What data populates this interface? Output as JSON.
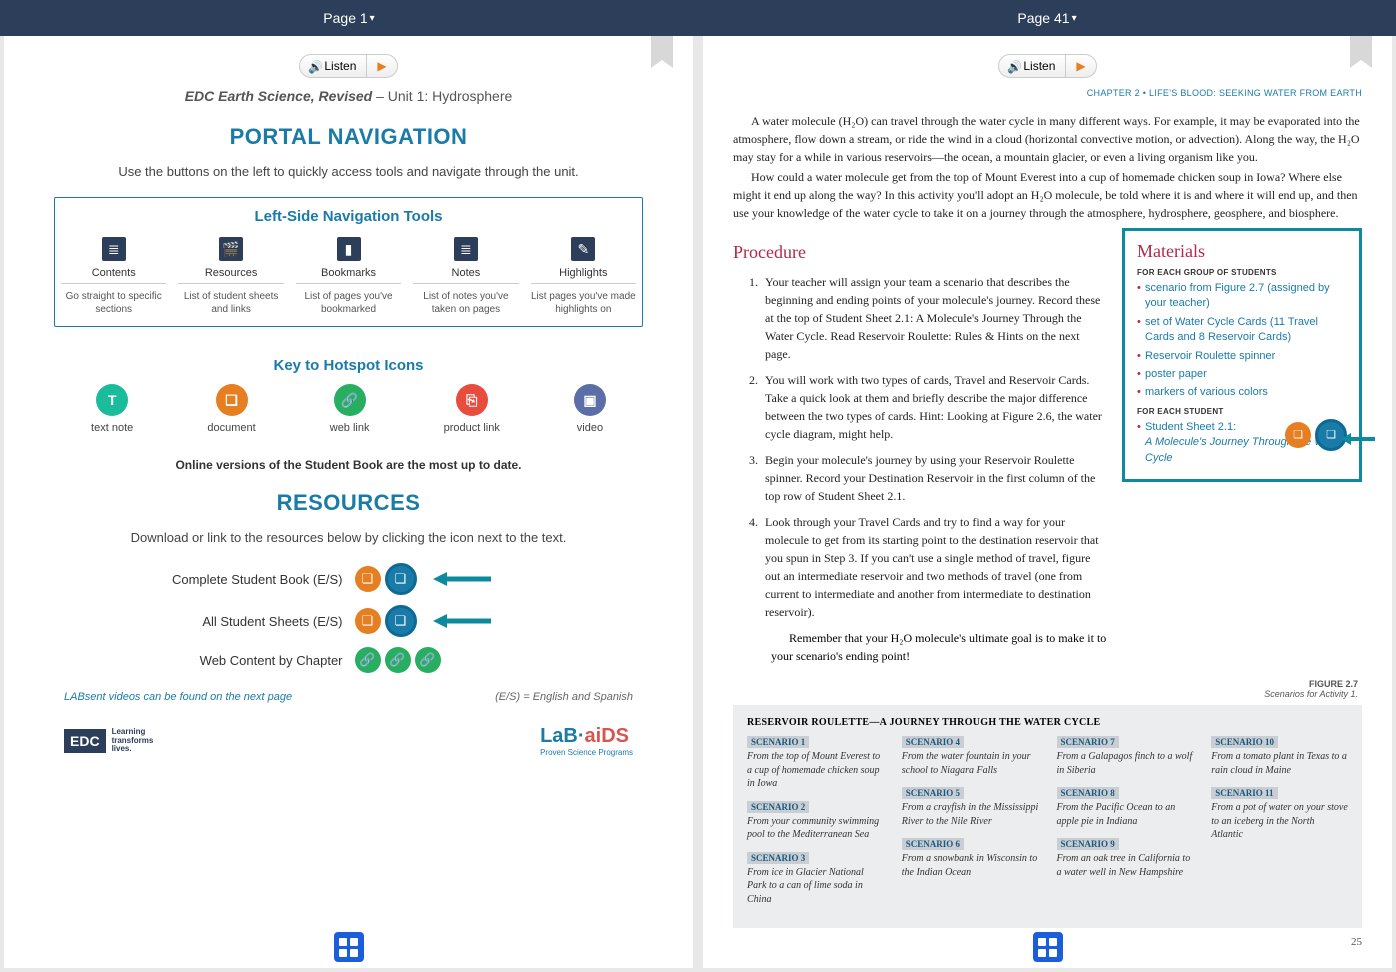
{
  "colors": {
    "topbar": "#2c3e5a",
    "accent": "#1a7ba8",
    "procTitle": "#b02a4a",
    "materialsBorder": "#0d8a9e",
    "orange": "#e67e22",
    "green": "#27ae60",
    "scenarioBg": "#ecedef"
  },
  "topbar": {
    "left": "Page 1",
    "right": "Page 41"
  },
  "listenLabel": "Listen",
  "page1": {
    "titleItalic": "EDC Earth Science, Revised",
    "titleRest": " – Unit 1: Hydrosphere",
    "portalHeading": "PORTAL NAVIGATION",
    "portalIntro": "Use the buttons on the left to quickly access tools and navigate through the unit.",
    "navBoxTitle": "Left-Side Navigation Tools",
    "navCols": [
      {
        "label": "Contents",
        "desc": "Go straight to specific sections"
      },
      {
        "label": "Resources",
        "desc": "List of student sheets and links"
      },
      {
        "label": "Bookmarks",
        "desc": "List of pages you've bookmarked"
      },
      {
        "label": "Notes",
        "desc": "List of notes you've taken on pages"
      },
      {
        "label": "Highlights",
        "desc": "List pages you've made highlights on"
      }
    ],
    "hotspotTitle": "Key to Hotspot Icons",
    "hotspots": [
      {
        "label": "text note",
        "glyph": "T",
        "color": "#1abc9c"
      },
      {
        "label": "document",
        "glyph": "❏",
        "color": "#e67e22"
      },
      {
        "label": "web link",
        "glyph": "🔗",
        "color": "#27ae60"
      },
      {
        "label": "product link",
        "glyph": "⎘",
        "color": "#e74c3c"
      },
      {
        "label": "video",
        "glyph": "▣",
        "color": "#5b6ea8"
      }
    ],
    "noteLine": "Online versions of the Student Book are the most up to date.",
    "resourcesHeading": "RESOURCES",
    "resourcesIntro": "Download or link to the resources below by clicking the icon next to the text.",
    "resRows": [
      {
        "label": "Complete Student Book (E/S)",
        "icons": [
          "orange",
          "teal"
        ],
        "arrow": true
      },
      {
        "label": "All Student Sheets (E/S)",
        "icons": [
          "orange",
          "teal"
        ],
        "arrow": true
      },
      {
        "label": "Web Content by Chapter",
        "icons": [
          "green",
          "green",
          "green"
        ],
        "arrow": false
      }
    ],
    "footLeft": "LABsent videos can be found on the next page",
    "footRight": "(E/S) = English and Spanish",
    "edc": {
      "box": "EDC",
      "tag": "Learning\ntransforms\nlives."
    },
    "labaids": {
      "text1": "LaB·",
      "text2": "aiDS",
      "sub": "Proven Science Programs"
    }
  },
  "page41": {
    "chapterHead": "CHAPTER 2 • LIFE'S BLOOD: SEEKING WATER FROM EARTH",
    "para1": "A water molecule (H₂O) can travel through the water cycle in many different ways. For example, it may be evaporated into the atmosphere, flow down a stream, or ride the wind in a cloud (horizontal convective motion, or advection). Along the way, the H₂O may stay for a while in various reservoirs—the ocean, a mountain glacier, or even a living organism like you.",
    "para2": "How could a water molecule get from the top of Mount Everest into a cup of homemade chicken soup in Iowa? Where else might it end up along the way? In this activity you'll adopt an H₂O molecule, be told where it is and where it will end up, and then use your knowledge of the water cycle to take it on a journey through the atmosphere, hydrosphere, geosphere, and biosphere.",
    "procTitle": "Procedure",
    "steps": [
      "Your teacher will assign your team a scenario that describes the beginning and ending points of your molecule's journey. Record these at the top of Student Sheet 2.1: A Molecule's Journey Through the Water Cycle. Read Reservoir Roulette: Rules & Hints on the next page.",
      "You will work with two types of cards, Travel and Reservoir Cards. Take a quick look at them and briefly describe the major difference between the two types of cards. Hint: Looking at Figure 2.6, the water cycle diagram, might help.",
      "Begin your molecule's journey by using your Reservoir Roulette spinner. Record your Destination Reservoir in the first column of the top row of Student Sheet 2.1.",
      "Look through your Travel Cards and try to find a way for your molecule to get from its starting point to the destination reservoir that you spun in Step 3. If you can't use a single method of travel, figure out an intermediate reservoir and two methods of travel (one from current to intermediate and another from intermediate to destination reservoir)."
    ],
    "stepsNote": "Remember that your H₂O molecule's ultimate goal is to make it to your scenario's ending point!",
    "materialsTitle": "Materials",
    "matGroupLabel": "FOR EACH GROUP OF STUDENTS",
    "matGroup": [
      "scenario from Figure 2.7 (assigned by your teacher)",
      "set of Water Cycle Cards (11 Travel Cards and 8 Reservoir Cards)",
      "Reservoir Roulette spinner",
      "poster paper",
      "markers of various colors"
    ],
    "matStudentLabel": "FOR EACH STUDENT",
    "matStudent": [
      "Student Sheet 2.1: A Molecule's Journey Through the Water Cycle"
    ],
    "figLabel": "FIGURE 2.7",
    "figCaption": "Scenarios for Activity 1.",
    "scenTitle": "RESERVOIR ROULETTE—A JOURNEY THROUGH THE WATER CYCLE",
    "scenarios": [
      [
        {
          "label": "SCENARIO 1",
          "text": "From the top of Mount Everest to a cup of homemade chicken soup in Iowa"
        },
        {
          "label": "SCENARIO 2",
          "text": "From your community swimming pool to the Mediterranean Sea"
        },
        {
          "label": "SCENARIO 3",
          "text": "From ice in Glacier National Park to a can of lime soda in China"
        }
      ],
      [
        {
          "label": "SCENARIO 4",
          "text": "From the water fountain in your school to Niagara Falls"
        },
        {
          "label": "SCENARIO 5",
          "text": "From a crayfish in the Mississippi River to the Nile River"
        },
        {
          "label": "SCENARIO 6",
          "text": "From a snowbank in Wisconsin to the Indian Ocean"
        }
      ],
      [
        {
          "label": "SCENARIO 7",
          "text": "From a Galapagos finch to a wolf in Siberia"
        },
        {
          "label": "SCENARIO 8",
          "text": "From the Pacific Ocean to an apple pie in Indiana"
        },
        {
          "label": "SCENARIO 9",
          "text": "From an oak tree in California to a water well in New Hampshire"
        }
      ],
      [
        {
          "label": "SCENARIO 10",
          "text": "From a tomato plant in Texas to a rain cloud in Maine"
        },
        {
          "label": "SCENARIO 11",
          "text": "From a pot of water on your stove to an iceberg in the North Atlantic"
        }
      ]
    ],
    "pageNum": "25"
  }
}
